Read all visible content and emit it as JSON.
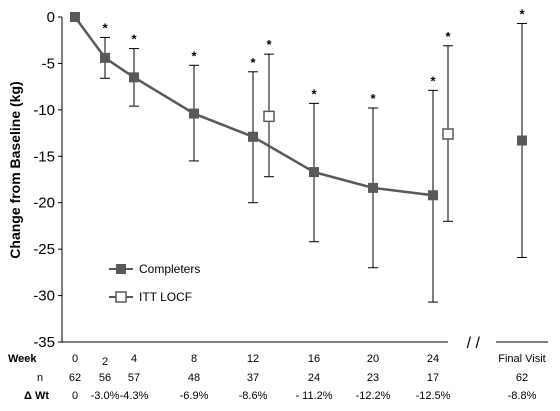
{
  "chart_data": {
    "type": "line",
    "ylabel": "Change from Baseline (kg)",
    "ylim": [
      -35,
      0
    ],
    "yticks": [
      "0",
      "-5",
      "-10",
      "-15",
      "-20",
      "-25",
      "-30",
      "-35"
    ],
    "ytick_values": [
      0,
      -5,
      -10,
      -15,
      -20,
      -25,
      -30,
      -35
    ],
    "row_labels": {
      "week": "Week",
      "n": "n",
      "dwt": "Δ Wt"
    },
    "x_ticks": [
      {
        "week": "0",
        "n": "62",
        "dwt": "0"
      },
      {
        "week": "2",
        "n": "56",
        "dwt": "-3.0%"
      },
      {
        "week": "4",
        "n": "57",
        "dwt": "-4.3%"
      },
      {
        "week": "8",
        "n": "48",
        "dwt": "-6.9%"
      },
      {
        "week": "12",
        "n": "37",
        "dwt": "-8.6%"
      },
      {
        "week": "16",
        "n": "24",
        "dwt": "- 11.2%"
      },
      {
        "week": "20",
        "n": "23",
        "dwt": "-12.2%"
      },
      {
        "week": "24",
        "n": "17",
        "dwt": "-12.5%"
      },
      {
        "week": "Final Visit",
        "n": "62",
        "dwt": "-8.8%"
      }
    ],
    "axis_break": "/ /",
    "legend": {
      "placement": "bottom-left"
    },
    "significance_marker": "*",
    "series": [
      {
        "name": "Completers",
        "marker": "filled-square",
        "connected": true,
        "points": [
          {
            "week": 0,
            "y": 0,
            "lo": 0,
            "hi": 0,
            "sig": false
          },
          {
            "week": 2,
            "y": -4.4,
            "lo": -6.6,
            "hi": -2.2,
            "sig": true
          },
          {
            "week": 4,
            "y": -6.5,
            "lo": -9.6,
            "hi": -3.4,
            "sig": true
          },
          {
            "week": 8,
            "y": -10.4,
            "lo": -15.5,
            "hi": -5.2,
            "sig": true
          },
          {
            "week": 12,
            "y": -12.9,
            "lo": -20.0,
            "hi": -5.9,
            "sig": true
          },
          {
            "week": 16,
            "y": -16.7,
            "lo": -24.2,
            "hi": -9.3,
            "sig": true
          },
          {
            "week": 20,
            "y": -18.4,
            "lo": -27.0,
            "hi": -9.8,
            "sig": true
          },
          {
            "week": 24,
            "y": -19.2,
            "lo": -30.7,
            "hi": -7.9,
            "sig": true
          },
          {
            "week": "Final Visit",
            "y": -13.3,
            "lo": -25.9,
            "hi": -0.7,
            "sig": true
          }
        ]
      },
      {
        "name": "ITT LOCF",
        "marker": "open-square",
        "connected": false,
        "points": [
          {
            "week": 12,
            "y": -10.7,
            "lo": -17.2,
            "hi": -4.0,
            "sig": true
          },
          {
            "week": 24,
            "y": -12.6,
            "lo": -22.0,
            "hi": -3.1,
            "sig": true
          }
        ]
      }
    ]
  }
}
